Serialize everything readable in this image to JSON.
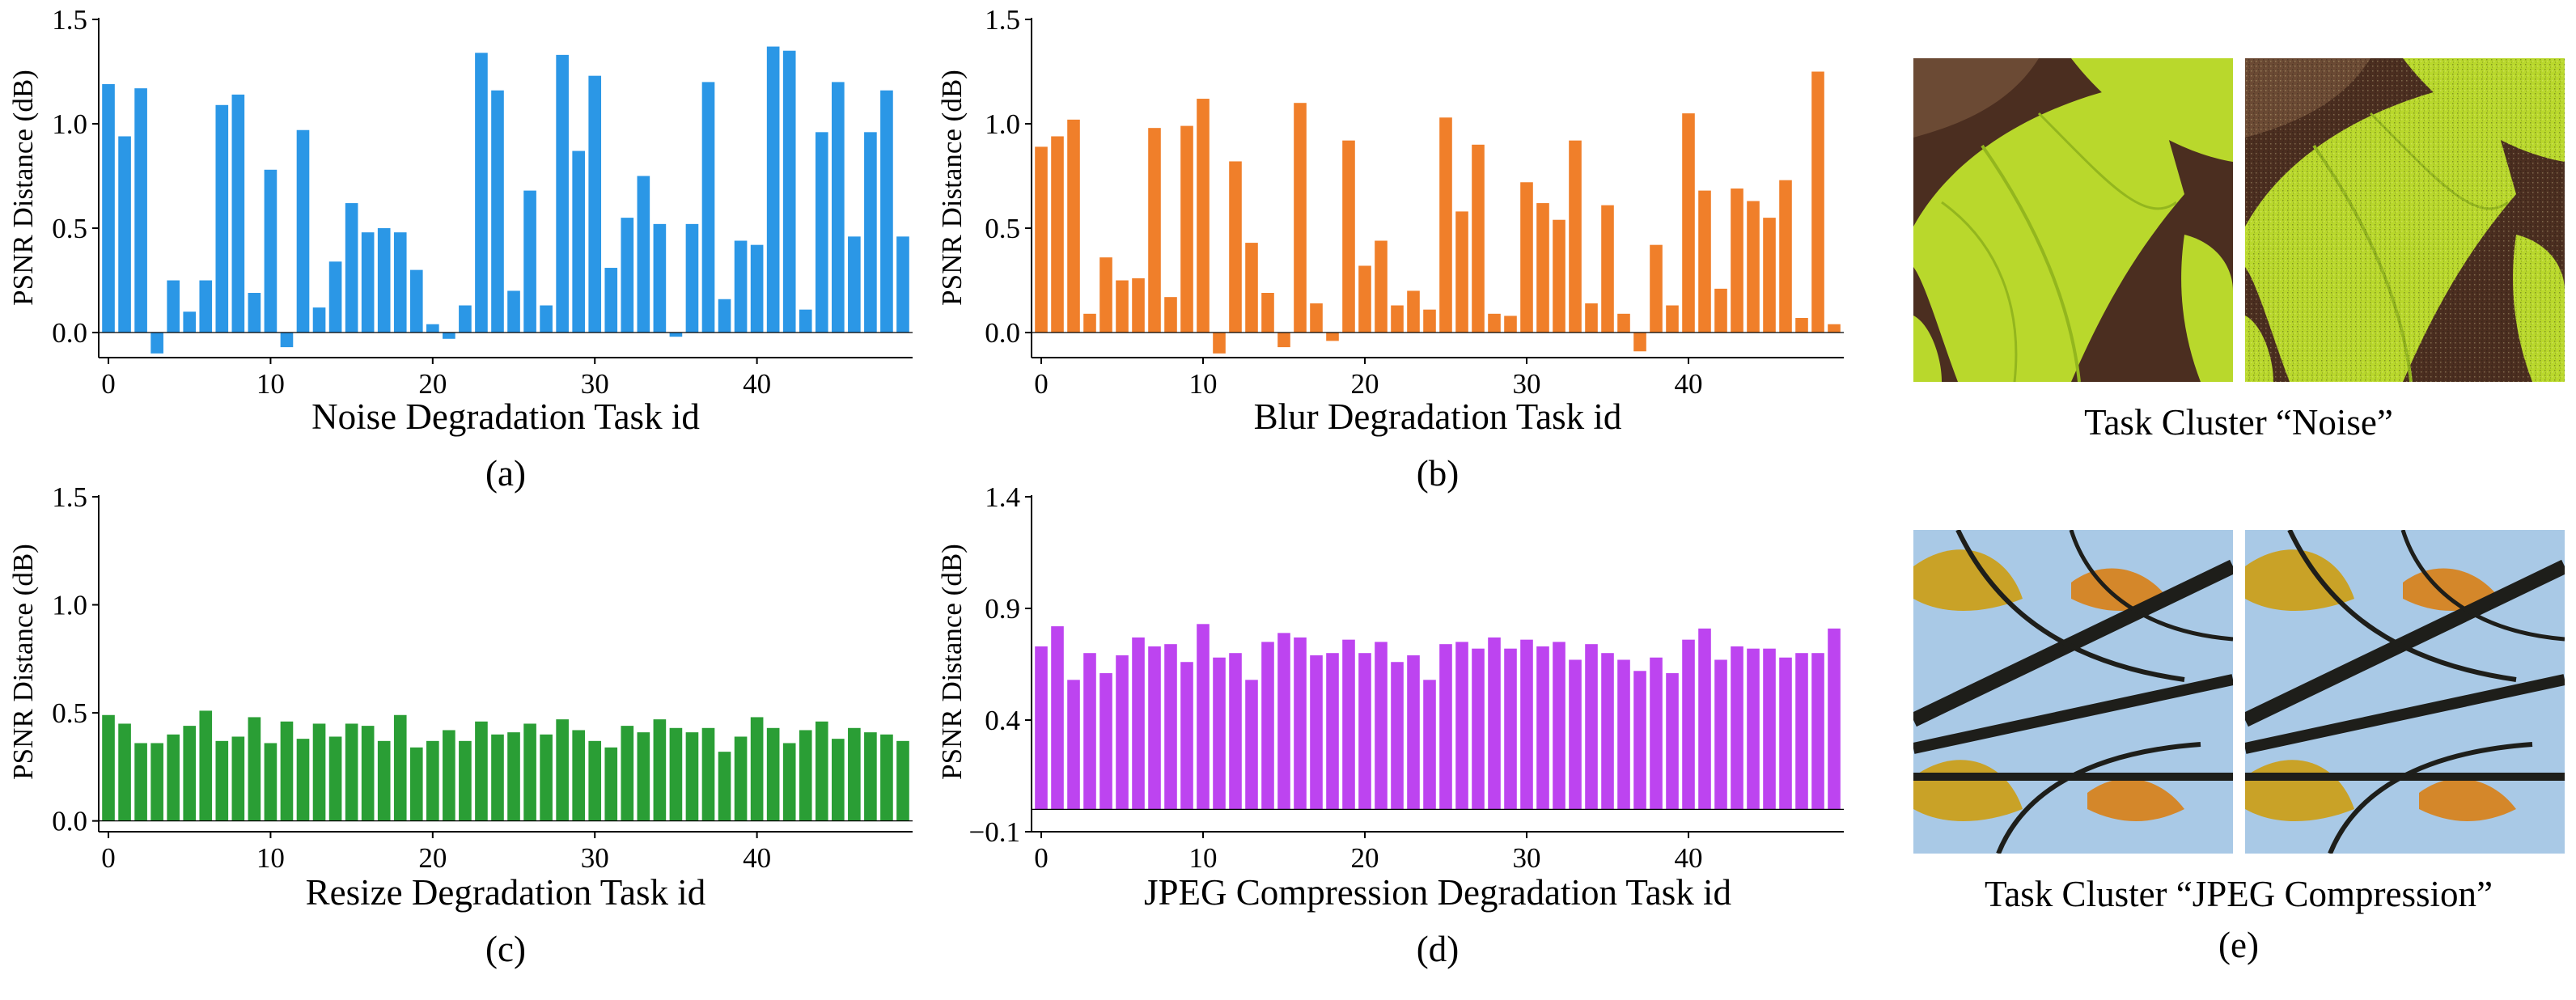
{
  "chart_data": [
    {
      "id": "a",
      "type": "bar",
      "color": "#2b97e6",
      "xlabel": "Noise Degradation Task id",
      "ylabel": "PSNR Distance (dB)",
      "caption": "(a)",
      "ylim": [
        -0.12,
        1.5
      ],
      "yticks": [
        "0.0",
        "0.5",
        "1.0",
        "1.5"
      ],
      "ytick_values": [
        0,
        0.5,
        1.0,
        1.5
      ],
      "xticks": [
        "0",
        "10",
        "20",
        "30",
        "40"
      ],
      "xtick_values": [
        0,
        10,
        20,
        30,
        40
      ],
      "x": [
        0,
        1,
        2,
        3,
        4,
        5,
        6,
        7,
        8,
        9,
        10,
        11,
        12,
        13,
        14,
        15,
        16,
        17,
        18,
        19,
        20,
        21,
        22,
        23,
        24,
        25,
        26,
        27,
        28,
        29,
        30,
        31,
        32,
        33,
        34,
        35,
        36,
        37,
        38,
        39,
        40,
        41,
        42,
        43,
        44,
        45,
        46,
        47,
        48,
        49
      ],
      "values": [
        1.19,
        0.94,
        1.17,
        -0.1,
        0.25,
        0.1,
        0.25,
        1.09,
        1.14,
        0.19,
        0.78,
        -0.07,
        0.97,
        0.12,
        0.34,
        0.62,
        0.48,
        0.5,
        0.48,
        0.3,
        0.04,
        -0.03,
        0.13,
        1.34,
        1.16,
        0.2,
        0.68,
        0.13,
        1.33,
        0.87,
        1.23,
        0.31,
        0.55,
        0.75,
        0.52,
        -0.02,
        0.52,
        1.2,
        0.16,
        0.44,
        0.42,
        1.37,
        1.35,
        0.11,
        0.96,
        1.2,
        0.46,
        0.96,
        1.16,
        0.46
      ]
    },
    {
      "id": "b",
      "type": "bar",
      "color": "#f07f2a",
      "xlabel": "Blur Degradation Task id",
      "ylabel": "PSNR Distance (dB)",
      "caption": "(b)",
      "ylim": [
        -0.12,
        1.5
      ],
      "yticks": [
        "0.0",
        "0.5",
        "1.0",
        "1.5"
      ],
      "ytick_values": [
        0,
        0.5,
        1.0,
        1.5
      ],
      "xticks": [
        "0",
        "10",
        "20",
        "30",
        "40"
      ],
      "xtick_values": [
        0,
        10,
        20,
        30,
        40
      ],
      "x": [
        0,
        1,
        2,
        3,
        4,
        5,
        6,
        7,
        8,
        9,
        10,
        11,
        12,
        13,
        14,
        15,
        16,
        17,
        18,
        19,
        20,
        21,
        22,
        23,
        24,
        25,
        26,
        27,
        28,
        29,
        30,
        31,
        32,
        33,
        34,
        35,
        36,
        37,
        38,
        39,
        40,
        41,
        42,
        43,
        44,
        45,
        46,
        47,
        48,
        49
      ],
      "values": [
        0.89,
        0.94,
        1.02,
        0.09,
        0.36,
        0.25,
        0.26,
        0.98,
        0.17,
        0.99,
        1.12,
        -0.1,
        0.82,
        0.43,
        0.19,
        -0.07,
        1.1,
        0.14,
        -0.04,
        0.92,
        0.32,
        0.44,
        0.13,
        0.2,
        0.11,
        1.03,
        0.58,
        0.9,
        0.09,
        0.08,
        0.72,
        0.62,
        0.54,
        0.92,
        0.14,
        0.61,
        0.09,
        -0.09,
        0.42,
        0.13,
        1.05,
        0.68,
        0.21,
        0.69,
        0.63,
        0.55,
        0.73,
        0.07,
        1.25,
        0.04
      ]
    },
    {
      "id": "c",
      "type": "bar",
      "color": "#2a9e35",
      "xlabel": "Resize Degradation Task id",
      "ylabel": "PSNR Distance (dB)",
      "caption": "(c)",
      "ylim": [
        -0.05,
        1.5
      ],
      "yticks": [
        "0.0",
        "0.5",
        "1.0",
        "1.5"
      ],
      "ytick_values": [
        0,
        0.5,
        1.0,
        1.5
      ],
      "xticks": [
        "0",
        "10",
        "20",
        "30",
        "40"
      ],
      "xtick_values": [
        0,
        10,
        20,
        30,
        40
      ],
      "x": [
        0,
        1,
        2,
        3,
        4,
        5,
        6,
        7,
        8,
        9,
        10,
        11,
        12,
        13,
        14,
        15,
        16,
        17,
        18,
        19,
        20,
        21,
        22,
        23,
        24,
        25,
        26,
        27,
        28,
        29,
        30,
        31,
        32,
        33,
        34,
        35,
        36,
        37,
        38,
        39,
        40,
        41,
        42,
        43,
        44,
        45,
        46,
        47,
        48,
        49
      ],
      "values": [
        0.49,
        0.45,
        0.36,
        0.36,
        0.4,
        0.44,
        0.51,
        0.37,
        0.39,
        0.48,
        0.36,
        0.46,
        0.38,
        0.45,
        0.39,
        0.45,
        0.44,
        0.37,
        0.49,
        0.34,
        0.37,
        0.42,
        0.37,
        0.46,
        0.4,
        0.41,
        0.45,
        0.4,
        0.47,
        0.42,
        0.37,
        0.34,
        0.44,
        0.41,
        0.47,
        0.43,
        0.41,
        0.43,
        0.32,
        0.39,
        0.48,
        0.43,
        0.36,
        0.42,
        0.46,
        0.38,
        0.43,
        0.41,
        0.4,
        0.37
      ]
    },
    {
      "id": "d",
      "type": "bar",
      "color": "#bd44f0",
      "xlabel": "JPEG Compression Degradation Task id",
      "ylabel": "PSNR Distance (dB)",
      "caption": "(d)",
      "ylim": [
        -0.1,
        1.4
      ],
      "yticks": [
        "−0.1",
        "0.4",
        "0.9",
        "1.4"
      ],
      "ytick_values": [
        -0.1,
        0.4,
        0.9,
        1.4
      ],
      "xticks": [
        "0",
        "10",
        "20",
        "30",
        "40"
      ],
      "xtick_values": [
        0,
        10,
        20,
        30,
        40
      ],
      "x": [
        0,
        1,
        2,
        3,
        4,
        5,
        6,
        7,
        8,
        9,
        10,
        11,
        12,
        13,
        14,
        15,
        16,
        17,
        18,
        19,
        20,
        21,
        22,
        23,
        24,
        25,
        26,
        27,
        28,
        29,
        30,
        31,
        32,
        33,
        34,
        35,
        36,
        37,
        38,
        39,
        40,
        41,
        42,
        43,
        44,
        45,
        46,
        47,
        48,
        49
      ],
      "values": [
        0.73,
        0.82,
        0.58,
        0.7,
        0.61,
        0.69,
        0.77,
        0.73,
        0.74,
        0.66,
        0.83,
        0.68,
        0.7,
        0.58,
        0.75,
        0.79,
        0.77,
        0.69,
        0.7,
        0.76,
        0.7,
        0.75,
        0.66,
        0.69,
        0.58,
        0.74,
        0.75,
        0.72,
        0.77,
        0.72,
        0.76,
        0.73,
        0.75,
        0.67,
        0.74,
        0.7,
        0.67,
        0.62,
        0.68,
        0.61,
        0.76,
        0.81,
        0.67,
        0.73,
        0.72,
        0.72,
        0.68,
        0.7,
        0.7,
        0.81
      ]
    }
  ],
  "panel_e": {
    "noise_title": "Task Cluster “Noise”",
    "jpeg_title": "Task Cluster “JPEG Compression”",
    "caption": "(e)",
    "colors": {
      "leaf": "#b9d82c",
      "leaf_dark": "#93b61e",
      "wing": "#4b2e20",
      "wing_light": "#6b4a34",
      "glass": "#a9c9e6",
      "lead": "#1e1e1a",
      "amber": "#c9a227"
    }
  }
}
